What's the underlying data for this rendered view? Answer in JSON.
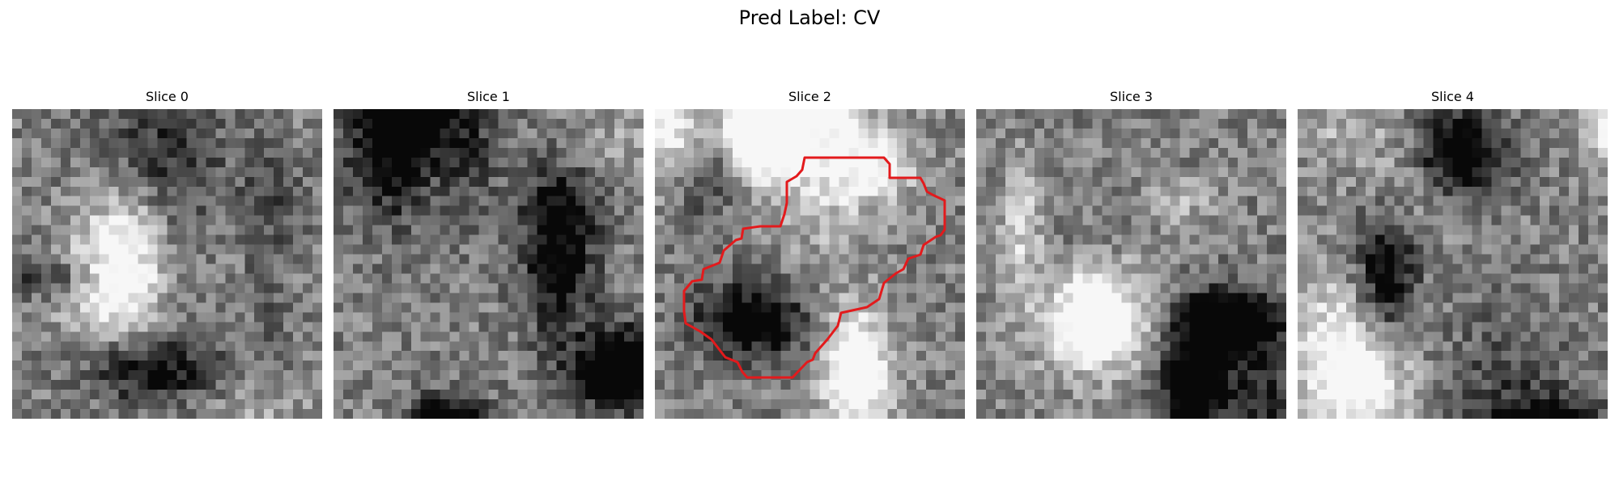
{
  "figure": {
    "title": "Pred Label: CV",
    "background": "#ffffff"
  },
  "panels": [
    {
      "title": "Slice 0",
      "highlight": false
    },
    {
      "title": "Slice 1",
      "highlight": false
    },
    {
      "title": "Slice 2",
      "highlight": true
    },
    {
      "title": "Slice 3",
      "highlight": false
    },
    {
      "title": "Slice 4",
      "highlight": false
    }
  ],
  "image": {
    "colormap": "gray",
    "grid": "32x32"
  },
  "overlay": {
    "color": "#e31a1c",
    "description": "predicted region contour"
  }
}
